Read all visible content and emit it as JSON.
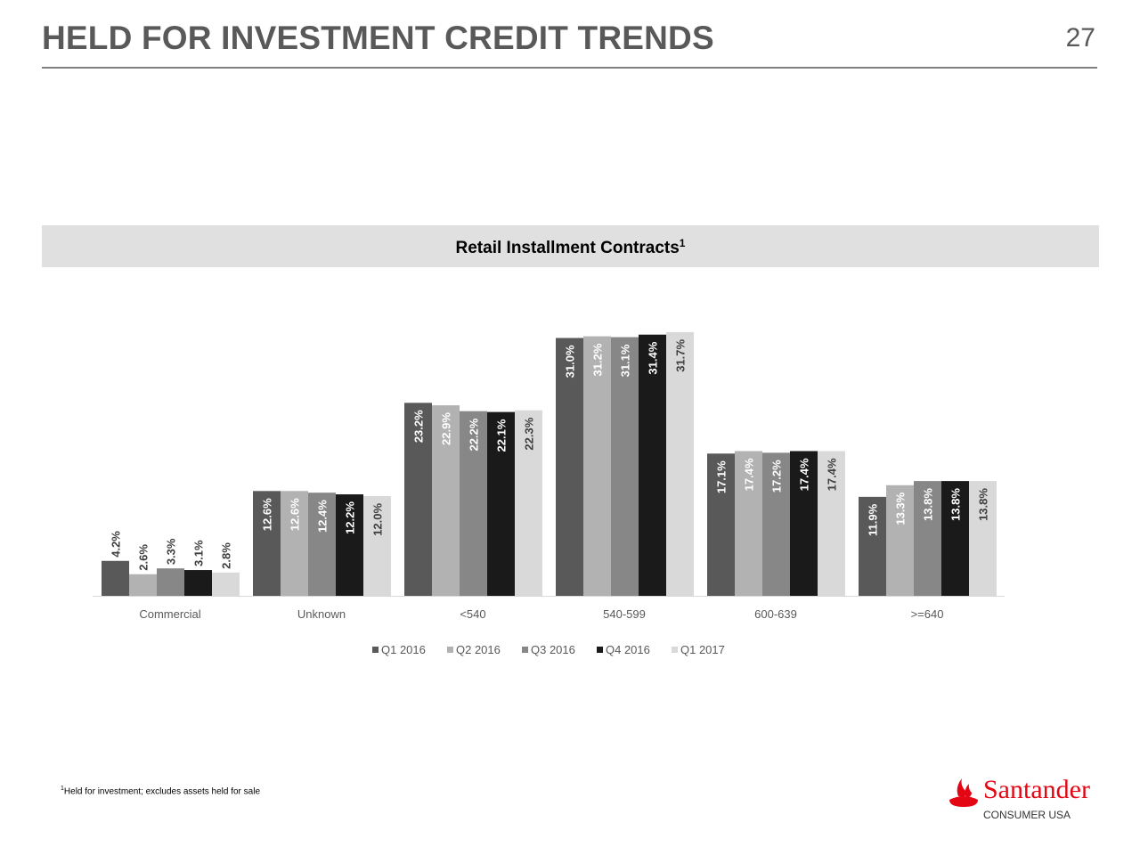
{
  "header": {
    "title": "HELD FOR INVESTMENT CREDIT TRENDS",
    "page_number": "27"
  },
  "banner": {
    "title": "Retail Installment Contracts",
    "superscript": "1"
  },
  "footnote": {
    "marker": "1",
    "text": "Held for investment; excludes assets held for sale"
  },
  "logo": {
    "brand": "Santander",
    "sub": "CONSUMER USA",
    "color": "#e30613"
  },
  "chart_data": {
    "type": "bar",
    "title": "Retail Installment Contracts",
    "categories": [
      "Commercial",
      "Unknown",
      "<540",
      "540-599",
      "600-639",
      ">=640"
    ],
    "series": [
      {
        "name": "Q1 2016",
        "color": "#595959",
        "values": [
          4.2,
          12.6,
          23.2,
          31.0,
          17.1,
          11.9
        ]
      },
      {
        "name": "Q2 2016",
        "color": "#b2b2b2",
        "values": [
          2.6,
          12.6,
          22.9,
          31.2,
          17.4,
          13.3
        ]
      },
      {
        "name": "Q3 2016",
        "color": "#878787",
        "values": [
          3.3,
          12.4,
          22.2,
          31.1,
          17.2,
          13.8
        ]
      },
      {
        "name": "Q4 2016",
        "color": "#1a1a1a",
        "values": [
          3.1,
          12.2,
          22.1,
          31.4,
          17.4,
          13.8
        ]
      },
      {
        "name": "Q1 2017",
        "color": "#d9d9d9",
        "values": [
          2.8,
          12.0,
          22.3,
          31.7,
          17.4,
          13.8
        ]
      }
    ],
    "value_format": "%",
    "ylim": [
      0,
      32
    ],
    "grid": false,
    "legend": "bottom"
  }
}
